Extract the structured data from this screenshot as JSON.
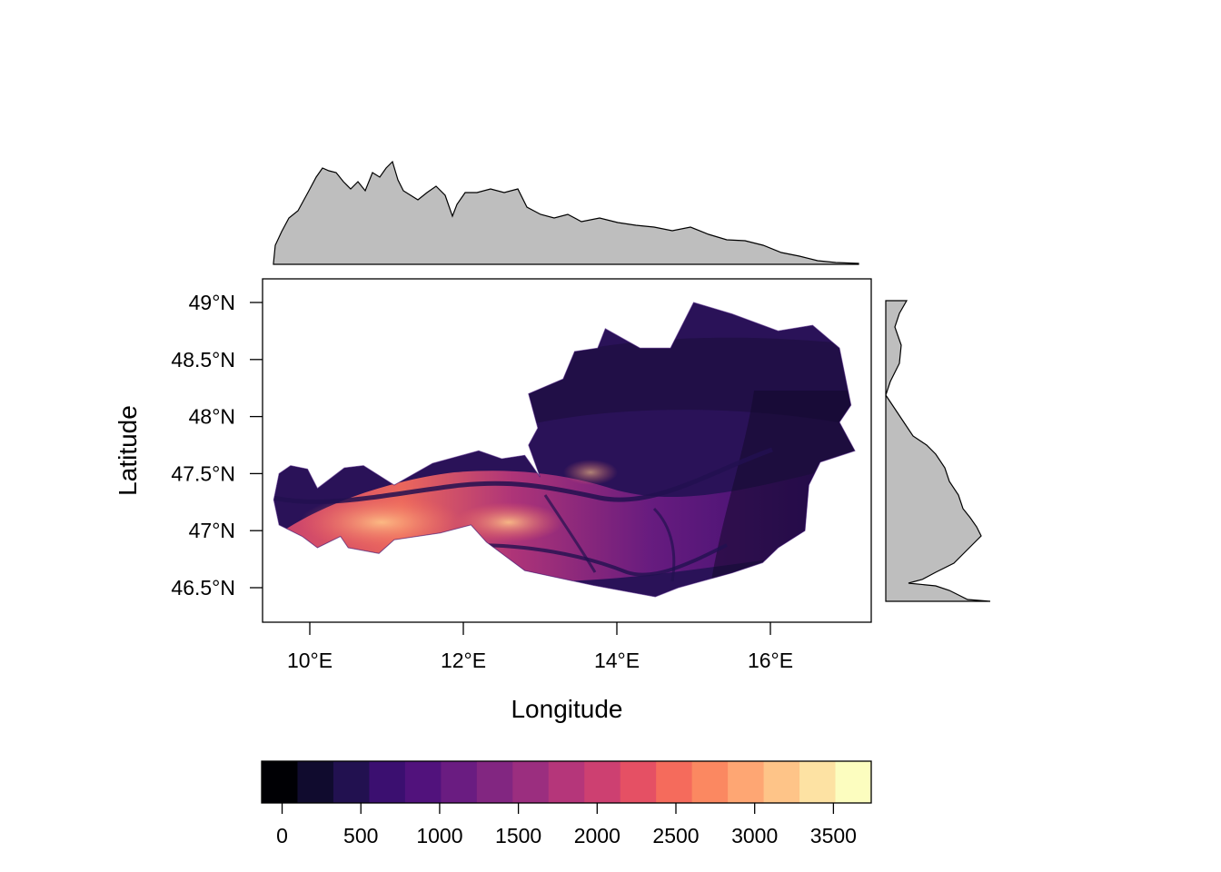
{
  "map": {
    "x_axis": {
      "title": "Longitude",
      "ticks": [
        {
          "value": 10,
          "label": "10°E"
        },
        {
          "value": 12,
          "label": "12°E"
        },
        {
          "value": 14,
          "label": "14°E"
        },
        {
          "value": 16,
          "label": "16°E"
        }
      ]
    },
    "y_axis": {
      "title": "Latitude",
      "ticks": [
        {
          "value": 46.5,
          "label": "46.5°N"
        },
        {
          "value": 47.0,
          "label": "47°N"
        },
        {
          "value": 47.5,
          "label": "47.5°N"
        },
        {
          "value": 48.0,
          "label": "48°N"
        },
        {
          "value": 48.5,
          "label": "48.5°N"
        },
        {
          "value": 49.0,
          "label": "49°N"
        }
      ]
    },
    "extent": {
      "lon": [
        9.4,
        17.3
      ],
      "lat": [
        46.2,
        49.2
      ]
    },
    "raster_description_region": "Austria",
    "marginal_top_fill": "#bebebe",
    "marginal_right_fill": "#bebebe"
  },
  "colorbar": {
    "colors": [
      "#000004",
      "#100b2e",
      "#221150",
      "#3b0f70",
      "#51127c",
      "#6a1c81",
      "#822681",
      "#9b2e7f",
      "#b5367a",
      "#cd4071",
      "#e55064",
      "#f56b5c",
      "#fb8861",
      "#fea673",
      "#fec488",
      "#fde2a3",
      "#fcfdbf"
    ],
    "ticks": [
      {
        "value": 0,
        "label": "0"
      },
      {
        "value": 500,
        "label": "500"
      },
      {
        "value": 1000,
        "label": "1000"
      },
      {
        "value": 1500,
        "label": "1500"
      },
      {
        "value": 2000,
        "label": "2000"
      },
      {
        "value": 2500,
        "label": "2500"
      },
      {
        "value": 3000,
        "label": "3000"
      },
      {
        "value": 3500,
        "label": "3500"
      }
    ],
    "range": [
      -130,
      3740
    ]
  }
}
